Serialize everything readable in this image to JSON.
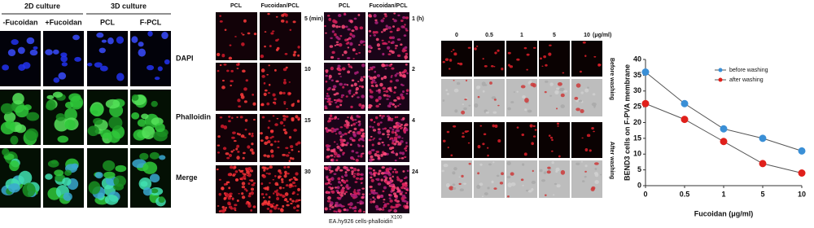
{
  "panel_a": {
    "group_headers": [
      "2D culture",
      "3D culture"
    ],
    "columns": [
      "-Fucoidan",
      "+Fucoidan",
      "PCL",
      "F-PCL"
    ],
    "rows": [
      "DAPI",
      "Phalloidin",
      "Merge"
    ]
  },
  "panel_b": {
    "columns": [
      "PCL",
      "Fucoidan/PCL"
    ],
    "rows": [
      "5 (min)",
      "10",
      "15",
      "30"
    ]
  },
  "panel_c": {
    "columns": [
      "PCL",
      "Fucoidan/PCL"
    ],
    "rows": [
      "1 (h)",
      "2",
      "4",
      "24"
    ],
    "caption": "EA.hy926 cells-phalloidin",
    "magnification": "X100"
  },
  "panel_d": {
    "columns": [
      "0",
      "0.5",
      "1",
      "5",
      "10"
    ],
    "unit": "(μg/ml)",
    "row_groups": [
      "Before washing",
      "After washing"
    ]
  },
  "chart_data": {
    "type": "line",
    "x_label": "Fucoidan (μg/ml)",
    "y_label": "BEND3 cells on F-PVA membrane",
    "categories": [
      "0",
      "0.5",
      "1",
      "5",
      "10"
    ],
    "series": [
      {
        "name": "before washing",
        "color": "#3a8fd6",
        "values": [
          36,
          26,
          18,
          15,
          11
        ]
      },
      {
        "name": "after washing",
        "color": "#e0201b",
        "values": [
          26,
          21,
          14,
          7,
          4
        ]
      }
    ],
    "ylim": [
      0,
      40
    ],
    "yticks": [
      0,
      5,
      10,
      15,
      20,
      25,
      30,
      35,
      40
    ],
    "legend": "upper right"
  }
}
